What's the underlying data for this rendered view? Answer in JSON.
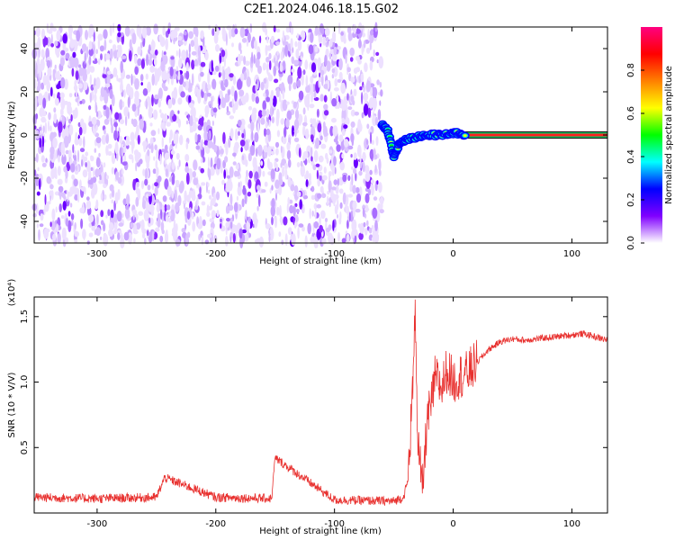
{
  "title": "C2E1.2024.046.18.15.G02",
  "chart_data": [
    {
      "type": "heatmap",
      "xlabel": "Height of straight line (km)",
      "ylabel": "Frequency (Hz)",
      "xlim": [
        -353,
        130
      ],
      "ylim": [
        -50,
        50
      ],
      "xticks": [
        -300,
        -200,
        -100,
        0,
        100
      ],
      "yticks": [
        -40,
        -20,
        0,
        20,
        40
      ],
      "colorbar": {
        "label": "Normalized spectral amplitude",
        "range": [
          0,
          1
        ],
        "ticks": [
          0.0,
          0.2,
          0.4,
          0.6,
          0.8
        ],
        "tick_labels": [
          "0.0",
          "0.2",
          "0.4",
          "0.6",
          "0.8"
        ],
        "colors": [
          "#ffffff",
          "#8000ff",
          "#0000ff",
          "#00ffff",
          "#00ff00",
          "#ffff00",
          "#ff8000",
          "#ff0000",
          "#ff0080"
        ]
      },
      "noise_region_x": [
        -353,
        -60
      ],
      "signal_track": [
        {
          "x": -60,
          "y": 5
        },
        {
          "x": -55,
          "y": 2
        },
        {
          "x": -50,
          "y": -10
        },
        {
          "x": -45,
          "y": -4
        },
        {
          "x": -40,
          "y": -2
        },
        {
          "x": -30,
          "y": -1
        },
        {
          "x": -20,
          "y": 0
        },
        {
          "x": -10,
          "y": 0
        },
        {
          "x": 0,
          "y": 1
        },
        {
          "x": 10,
          "y": 0
        },
        {
          "x": 130,
          "y": 0
        }
      ],
      "steady_band_x": [
        10,
        130
      ]
    },
    {
      "type": "line",
      "xlabel": "Height of straight line (km)",
      "ylabel": "SNR (10 * V/V)",
      "yscale_label": "(x10⁴)",
      "scale_exponent": 4,
      "xlim": [
        -353,
        130
      ],
      "ylim": [
        0,
        1.65
      ],
      "xticks": [
        -300,
        -200,
        -100,
        0,
        100
      ],
      "yticks": [
        0.5,
        1.0,
        1.5
      ],
      "series": [
        {
          "color": "#e8302e",
          "x": [
            -353,
            -300,
            -250,
            -243,
            -200,
            -153,
            -150,
            -100,
            -50,
            -42,
            -38,
            -35,
            -33,
            -32,
            -30,
            -26,
            -22,
            -18,
            -15,
            -10,
            -5,
            0,
            5,
            10,
            20,
            30,
            40,
            50,
            60,
            70,
            80,
            90,
            100,
            110,
            130
          ],
          "y": [
            0.12,
            0.11,
            0.12,
            0.27,
            0.12,
            0.11,
            0.42,
            0.1,
            0.09,
            0.12,
            0.25,
            0.8,
            1.2,
            1.63,
            0.6,
            0.15,
            0.7,
            0.85,
            1.05,
            0.95,
            1.1,
            1.0,
            1.05,
            1.05,
            1.15,
            1.25,
            1.31,
            1.33,
            1.32,
            1.33,
            1.34,
            1.35,
            1.36,
            1.37,
            1.32
          ]
        }
      ]
    }
  ]
}
